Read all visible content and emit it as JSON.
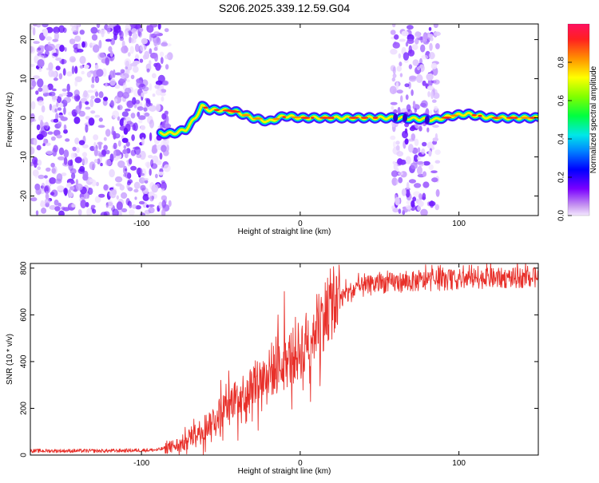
{
  "title": "S206.2025.339.12.59.G04",
  "chart_data": [
    {
      "type": "heatmap",
      "xlabel": "Height of straight line (km)",
      "ylabel": "Frequency (Hz)",
      "xlim": [
        -170,
        150
      ],
      "ylim": [
        -25,
        24
      ],
      "xticks": [
        -100,
        0,
        100
      ],
      "xtick_labels": [
        "-100",
        "0",
        "100"
      ],
      "yticks": [
        20,
        10,
        0,
        -10,
        -20
      ],
      "ytick_labels": [
        "20",
        "10",
        "0",
        "-10",
        "-20"
      ],
      "colorbar": {
        "label": "Normalized spectral amplitude",
        "range": [
          0.0,
          1.0
        ],
        "ticks": [
          0.0,
          0.2,
          0.4,
          0.6,
          0.8
        ],
        "tick_labels": [
          "0.0",
          "0.2",
          "0.4",
          "0.6",
          "0.8"
        ]
      },
      "ridge": [
        [
          -88,
          -4
        ],
        [
          -80,
          -4
        ],
        [
          -72,
          -3
        ],
        [
          -66,
          0
        ],
        [
          -62,
          3
        ],
        [
          -57,
          2
        ],
        [
          -50,
          2
        ],
        [
          -40,
          1.5
        ],
        [
          -30,
          0
        ],
        [
          -20,
          -1
        ],
        [
          -10,
          0.5
        ],
        [
          0,
          0
        ],
        [
          10,
          0
        ],
        [
          30,
          0
        ],
        [
          50,
          0
        ],
        [
          60,
          0
        ],
        [
          85,
          -0.5
        ],
        [
          95,
          0.5
        ],
        [
          105,
          1
        ],
        [
          120,
          0
        ],
        [
          150,
          0
        ]
      ],
      "noise_regions": [
        [
          -170,
          -82
        ],
        [
          58,
          87
        ]
      ]
    },
    {
      "type": "line",
      "xlabel": "Height of straight line (km)",
      "ylabel": "SNR (10 * v/v)",
      "xlim": [
        -170,
        150
      ],
      "ylim": [
        0,
        820
      ],
      "xticks": [
        -100,
        0,
        100
      ],
      "xtick_labels": [
        "-100",
        "0",
        "100"
      ],
      "yticks": [
        0,
        200,
        400,
        600,
        800
      ],
      "ytick_labels": [
        "0",
        "200",
        "400",
        "600",
        "800"
      ],
      "series": [
        {
          "name": "SNR",
          "color": "#e8302a",
          "trend": [
            [
              -170,
              18
            ],
            [
              -120,
              18
            ],
            [
              -90,
              22
            ],
            [
              -75,
              45
            ],
            [
              -60,
              120
            ],
            [
              -45,
              220
            ],
            [
              -30,
              300
            ],
            [
              -15,
              370
            ],
            [
              0,
              450
            ],
            [
              10,
              550
            ],
            [
              20,
              650
            ],
            [
              35,
              710
            ],
            [
              50,
              735
            ],
            [
              80,
              745
            ],
            [
              110,
              755
            ],
            [
              150,
              760
            ]
          ],
          "spikes": [
            [
              -60,
              170
            ],
            [
              -50,
              320
            ],
            [
              -45,
              360
            ],
            [
              -38,
              270
            ],
            [
              -27,
              400
            ],
            [
              -18,
              480
            ],
            [
              -14,
              600
            ],
            [
              -10,
              700
            ],
            [
              -3,
              590
            ],
            [
              3,
              520
            ],
            [
              87,
              810
            ],
            [
              112,
              808
            ],
            [
              120,
              830
            ]
          ]
        }
      ]
    }
  ]
}
